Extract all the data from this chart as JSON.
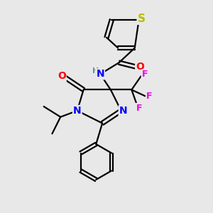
{
  "background_color": "#e8e8e8",
  "bond_color": "#000000",
  "bond_width": 1.6,
  "atom_colors": {
    "C": "#000000",
    "H": "#6b8e9f",
    "N": "#0000ff",
    "O": "#ff0000",
    "F": "#ee00ee",
    "S": "#bbbb00"
  },
  "font_size_atom": 10,
  "font_size_small": 8
}
